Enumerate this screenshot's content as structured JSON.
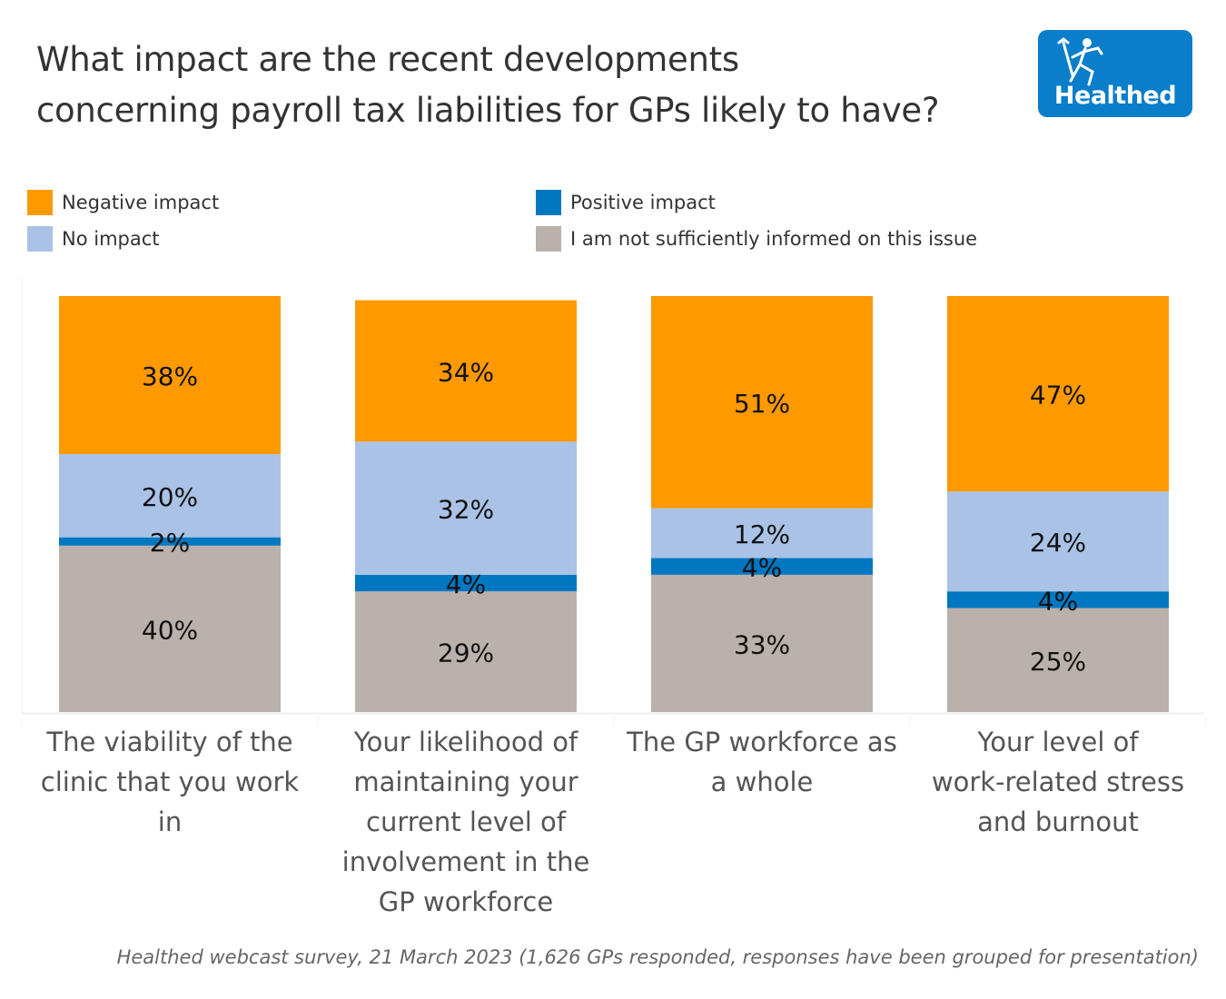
{
  "header": {
    "title_line1": "What impact are the recent developments",
    "title_line2": "concerning payroll tax liabilities for GPs likely to have?",
    "logo_text": "Healthed"
  },
  "legend": [
    {
      "label": "Negative impact",
      "color": "#ff9900"
    },
    {
      "label": "Positive impact",
      "color": "#0077c0"
    },
    {
      "label": "No impact",
      "color": "#a9c2e6"
    },
    {
      "label": "I am not sufficiently informed on this issue",
      "color": "#bab0ac"
    }
  ],
  "footnote": "Healthed webcast survey, 21 March 2023 (1,626 GPs responded, responses have been grouped for presentation)",
  "chart_data": {
    "type": "bar",
    "stacked": true,
    "title": "What impact are the recent developments concerning payroll tax liabilities for GPs likely to have?",
    "xlabel": "",
    "ylabel": "",
    "ylim": [
      0,
      100
    ],
    "grid": false,
    "legend_position": "top",
    "categories": [
      "The viability of the clinic that you work in",
      "Your likelihood of maintaining your current level of involvement in the GP workforce",
      "The GP workforce as a whole",
      "Your level of work-related stress and burnout"
    ],
    "category_lines": [
      [
        "The viability of the",
        "clinic that you work",
        "in"
      ],
      [
        "Your likelihood of",
        "maintaining your",
        "current level of",
        "involvement in the",
        "GP workforce"
      ],
      [
        "The GP workforce as",
        "a whole"
      ],
      [
        "Your level of",
        "work-related stress",
        "and burnout"
      ]
    ],
    "stack_order_bottom_to_top": [
      "I am not sufficiently informed on this issue",
      "Positive impact",
      "No impact",
      "Negative impact"
    ],
    "series": [
      {
        "name": "I am not sufficiently informed on this issue",
        "color": "#bab0ac",
        "values": [
          40,
          29,
          33,
          25
        ],
        "labels": [
          "40%",
          "29%",
          "33%",
          "25%"
        ]
      },
      {
        "name": "Positive impact",
        "color": "#0077c0",
        "values": [
          2,
          4,
          4,
          4
        ],
        "labels": [
          "2%",
          "4%",
          "4%",
          "4%"
        ]
      },
      {
        "name": "No impact",
        "color": "#a9c2e6",
        "values": [
          20,
          32,
          12,
          24
        ],
        "labels": [
          "20%",
          "32%",
          "12%",
          "24%"
        ]
      },
      {
        "name": "Negative impact",
        "color": "#ff9900",
        "values": [
          38,
          34,
          51,
          47
        ],
        "labels": [
          "38%",
          "34%",
          "51%",
          "47%"
        ]
      }
    ]
  }
}
